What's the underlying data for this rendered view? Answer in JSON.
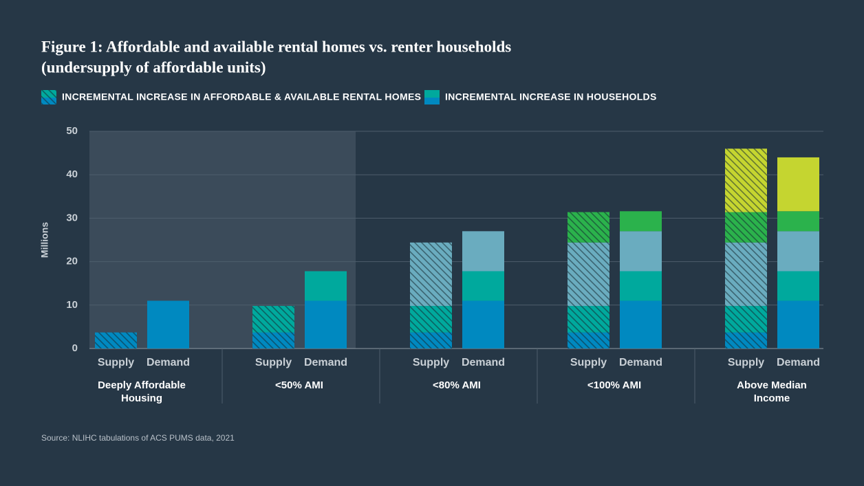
{
  "chart_data": {
    "type": "grouped-stacked-bar",
    "title": [
      "Figure 1: Affordable and available rental homes vs. renter households",
      "(undersupply of affordable units)"
    ],
    "y_label": "Millions",
    "categories": [
      "Deeply Affordable Housing",
      "<50% AMI",
      "<80% AMI",
      "<100% AMI",
      "Above Median Income"
    ],
    "bar_labels": [
      "Supply",
      "Demand"
    ],
    "segment_colors": [
      "#0089c0",
      "#00a99d",
      "#6aacbf",
      "#2bb24c",
      "#c5d530"
    ],
    "series": [
      {
        "name": "INCREMENTAL INCREASE IN AFFORDABLE & AVAILABLE RENTAL HOMES",
        "pattern": "hatch",
        "values": [
          3.7,
          6.1,
          14.6,
          7.0,
          14.6
        ]
      },
      {
        "name": "INCREMENTAL INCREASE IN HOUSEHOLDS",
        "pattern": "solid",
        "values": [
          11.0,
          6.8,
          9.2,
          4.6,
          12.4
        ]
      }
    ],
    "ylim": [
      0,
      50
    ],
    "yticks": [
      0,
      10,
      20,
      30,
      40,
      50
    ],
    "grid": true,
    "source": "Source: NLIHC tabulations of ACS PUMS data, 2021"
  }
}
